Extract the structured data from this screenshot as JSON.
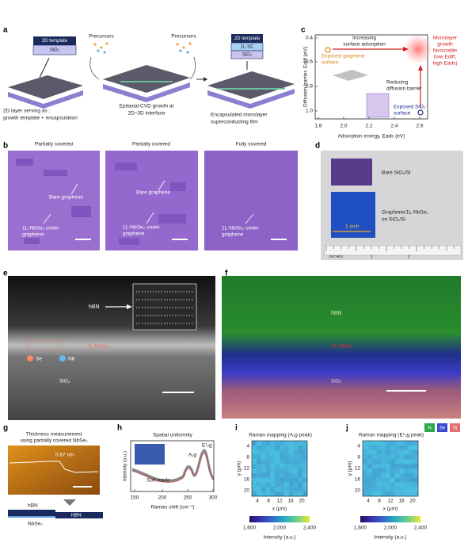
{
  "a": {
    "label": "a",
    "left_stack": [
      "2D template",
      "SiO₂"
    ],
    "precursors": [
      "Precursors",
      "Precursors"
    ],
    "right_stack": [
      "2D template",
      "1L-SC",
      "SiO₂"
    ],
    "left_caption": [
      "2D layer serving as :",
      "growth template + encapsulation"
    ],
    "middle_caption": [
      "Epitaxial CVD growth at",
      "2D–3D interface"
    ],
    "right_caption": [
      "Encapsulated monolayer",
      "superconducting film"
    ]
  },
  "b": {
    "label": "b",
    "titles": [
      "Partially covered",
      "Partially covered",
      "Fully covered"
    ],
    "image_1": [
      "Bare graphene",
      "1L-NbSe₂ under",
      "graphene"
    ],
    "image_2": [
      "Bare graphene",
      "1L-NbSe₂ under",
      "graphene"
    ],
    "image_3": [
      "1L-NbSe₂ under",
      "graphene"
    ]
  },
  "c": {
    "label": "c",
    "y_label": "Diffusion barrier, Ediff (eV)",
    "x_label": "Adsorption energy, Eads (eV)",
    "x_ticks": [
      "1.8",
      "2.0",
      "2.2",
      "2.4",
      "2.6"
    ],
    "y_ticks": [
      "0.4",
      "0.6",
      "0.8",
      "1.0"
    ],
    "top_arrow": [
      "Increasing",
      "surface adsorption"
    ],
    "graphene": [
      "Exposed graphene",
      "surface"
    ],
    "target": [
      "Monolayer",
      "growth",
      "favourable",
      "(low Ediff,",
      "high Eads)"
    ],
    "side_arrow": [
      "Reducing",
      "diffusion barrier"
    ],
    "sio2": [
      "Exposed SiO₂",
      "surface"
    ]
  },
  "d": {
    "label": "d",
    "bare": "Bare SiO₂/Si",
    "coated": [
      "Graphene/1L-NbSe₂",
      "on SiO₂/Si"
    ],
    "scale": "1 inch",
    "ruler": [
      "INCHES",
      "1",
      "2"
    ]
  },
  "e": {
    "label": "e",
    "hbn": "hBN",
    "layer": "1L-NbSe₂",
    "legend": [
      "Se",
      "Nb"
    ],
    "substrate": "SiO₂"
  },
  "f": {
    "label": "f",
    "hbn": "hBN",
    "layer": "1L-NbSe₂",
    "substrate": "SiO₂",
    "legend": [
      "N",
      "Se",
      "Si"
    ]
  },
  "g": {
    "label": "g",
    "title": [
      "Thickness measurement",
      "using partially covered NbSe₂"
    ],
    "step": "0.67 nm",
    "schematic": [
      "hBN",
      "hBN",
      "NbSe₂"
    ]
  },
  "h": {
    "label": "h",
    "title": "Spatial uniformity",
    "y_label": "Intensity (a.u.)",
    "x_label": "Raman shift (cm⁻¹)",
    "x_ticks": [
      "150",
      "200",
      "250",
      "300"
    ],
    "peaks": [
      "A₁g",
      "E¹₂g",
      "Soft mode"
    ]
  },
  "i": {
    "label": "i",
    "title": "Raman mapping (A₁g peak)",
    "y_label": "y (μm)",
    "x_label": "x (μm)",
    "y_ticks": [
      "4",
      "8",
      "12",
      "16",
      "20"
    ],
    "x_ticks": [
      "4",
      "8",
      "12",
      "16",
      "20"
    ],
    "colorbar_ticks": [
      "1,600",
      "2,000",
      "2,400"
    ],
    "colorbar_label": "Intensity (a.u.)"
  },
  "j": {
    "label": "j",
    "title": "Raman mapping (E¹₂g peak)",
    "y_label": "y (μm)",
    "x_label": "x (μm)",
    "y_ticks": [
      "4",
      "8",
      "12",
      "16",
      "20"
    ],
    "x_ticks": [
      "4",
      "8",
      "12",
      "16",
      "20"
    ],
    "colorbar_ticks": [
      "1,600",
      "2,000",
      "2,400"
    ],
    "colorbar_label": "Intensity (a.u.)"
  }
}
